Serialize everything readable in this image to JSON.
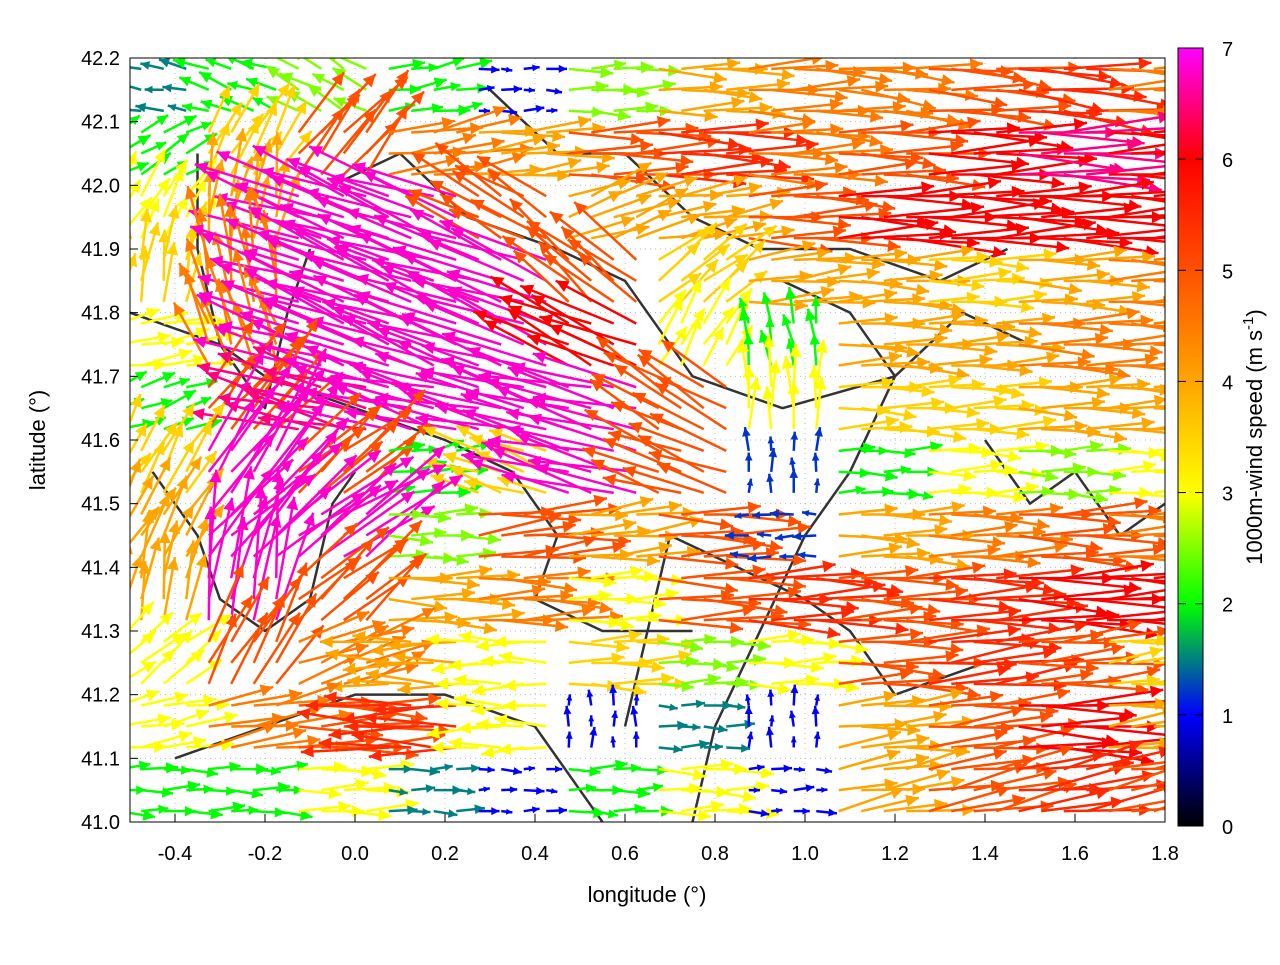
{
  "chart_data": {
    "type": "vector-field",
    "title": "",
    "xlabel": "longitude (°)",
    "ylabel": "latitude (°)",
    "xlim": [
      -0.5,
      1.8
    ],
    "ylim": [
      41.0,
      42.2
    ],
    "xticks": [
      "-0.4",
      "-0.2",
      "0.0",
      "0.2",
      "0.4",
      "0.6",
      "0.8",
      "1.0",
      "1.2",
      "1.4",
      "1.6",
      "1.8"
    ],
    "yticks": [
      "41.0",
      "41.1",
      "41.2",
      "41.3",
      "41.4",
      "41.5",
      "41.6",
      "41.7",
      "41.8",
      "41.9",
      "42.0",
      "42.1",
      "42.2"
    ],
    "grid": true,
    "colorbar": {
      "label": "1000m-wind speed (m s",
      "label_sup": "-1",
      "label_end": ")",
      "range": [
        0,
        7
      ],
      "ticks": [
        "0",
        "1",
        "2",
        "3",
        "4",
        "5",
        "6",
        "7"
      ],
      "colors": [
        "#000000",
        "#0000ff",
        "#00ff00",
        "#ffff00",
        "#ffa500",
        "#ff5000",
        "#ff0000",
        "#ff00ff"
      ]
    },
    "vector_grid": {
      "lon": [
        -0.45,
        -0.25,
        -0.05,
        0.15,
        0.35,
        0.55,
        0.75,
        0.95,
        1.15,
        1.35,
        1.55,
        1.75
      ],
      "lat": [
        42.15,
        42.05,
        41.95,
        41.85,
        41.75,
        41.65,
        41.55,
        41.45,
        41.35,
        41.25,
        41.15,
        41.05
      ],
      "note_units": "each cell = [speed m/s, direction deg toward, 0=east 90=north]",
      "rows": [
        [
          [
            1.5,
            170
          ],
          [
            2,
            160
          ],
          [
            2.5,
            150
          ],
          [
            2,
            10
          ],
          [
            1,
            0
          ],
          [
            2.5,
            0
          ],
          [
            4,
            0
          ],
          [
            4.5,
            0
          ],
          [
            4.5,
            355
          ],
          [
            5,
            355
          ],
          [
            5.5,
            355
          ],
          [
            4.5,
            0
          ]
        ],
        [
          [
            2,
            30
          ],
          [
            3.5,
            60
          ],
          [
            5,
            50
          ],
          [
            4.5,
            10
          ],
          [
            4,
            5
          ],
          [
            5,
            0
          ],
          [
            5.5,
            0
          ],
          [
            4.5,
            0
          ],
          [
            5,
            0
          ],
          [
            6,
            0
          ],
          [
            6.5,
            0
          ],
          [
            6,
            0
          ]
        ],
        [
          [
            3,
            60
          ],
          [
            4,
            80
          ],
          [
            6.8,
            160
          ],
          [
            6.8,
            160
          ],
          [
            5,
            150
          ],
          [
            4,
            20
          ],
          [
            4,
            10
          ],
          [
            5,
            0
          ],
          [
            6,
            0
          ],
          [
            6,
            0
          ],
          [
            6,
            0
          ],
          [
            6,
            0
          ]
        ],
        [
          [
            3.5,
            80
          ],
          [
            4.5,
            100
          ],
          [
            6.8,
            160
          ],
          [
            6.8,
            160
          ],
          [
            6.8,
            160
          ],
          [
            5,
            140
          ],
          [
            3.5,
            40
          ],
          [
            4,
            5
          ],
          [
            4,
            0
          ],
          [
            3.5,
            0
          ],
          [
            4,
            0
          ],
          [
            4.5,
            0
          ]
        ],
        [
          [
            3,
            10
          ],
          [
            4.5,
            110
          ],
          [
            6.8,
            160
          ],
          [
            6.8,
            160
          ],
          [
            6.8,
            160
          ],
          [
            6,
            155
          ],
          [
            3,
            60
          ],
          [
            2,
            100
          ],
          [
            4,
            0
          ],
          [
            4,
            0
          ],
          [
            4.5,
            0
          ],
          [
            4.5,
            0
          ]
        ],
        [
          [
            2,
            20
          ],
          [
            5,
            50
          ],
          [
            6.5,
            165
          ],
          [
            6.8,
            165
          ],
          [
            6.8,
            165
          ],
          [
            6.8,
            165
          ],
          [
            5,
            150
          ],
          [
            3,
            90
          ],
          [
            3.5,
            0
          ],
          [
            3.5,
            0
          ],
          [
            4,
            0
          ],
          [
            4,
            0
          ]
        ],
        [
          [
            3.5,
            60
          ],
          [
            6.8,
            55
          ],
          [
            5,
            40
          ],
          [
            2,
            10
          ],
          [
            3.5,
            160
          ],
          [
            6.8,
            165
          ],
          [
            5,
            160
          ],
          [
            1.2,
            90
          ],
          [
            2,
            0
          ],
          [
            3,
            0
          ],
          [
            2.5,
            0
          ],
          [
            3,
            0
          ]
        ],
        [
          [
            4,
            60
          ],
          [
            6.8,
            45
          ],
          [
            6.8,
            35
          ],
          [
            2.5,
            0
          ],
          [
            5,
            5
          ],
          [
            4,
            5
          ],
          [
            5,
            0
          ],
          [
            1.2,
            180
          ],
          [
            4,
            0
          ],
          [
            4.5,
            0
          ],
          [
            5,
            0
          ],
          [
            4.5,
            0
          ]
        ],
        [
          [
            4,
            80
          ],
          [
            6.8,
            80
          ],
          [
            5,
            40
          ],
          [
            4,
            0
          ],
          [
            4.5,
            0
          ],
          [
            3,
            0
          ],
          [
            5,
            0
          ],
          [
            5.5,
            0
          ],
          [
            5,
            0
          ],
          [
            5.5,
            0
          ],
          [
            6,
            0
          ],
          [
            6,
            0
          ]
        ],
        [
          [
            3,
            40
          ],
          [
            5,
            60
          ],
          [
            4.5,
            20
          ],
          [
            4,
            180
          ],
          [
            3,
            180
          ],
          [
            3.5,
            0
          ],
          [
            2.5,
            0
          ],
          [
            3,
            0
          ],
          [
            5,
            0
          ],
          [
            5.5,
            5
          ],
          [
            5,
            5
          ],
          [
            3.5,
            5
          ]
        ],
        [
          [
            3,
            10
          ],
          [
            4.5,
            10
          ],
          [
            5,
            0
          ],
          [
            5.5,
            180
          ],
          [
            3,
            180
          ],
          [
            1,
            90
          ],
          [
            1.5,
            0
          ],
          [
            1,
            90
          ],
          [
            4,
            5
          ],
          [
            5,
            5
          ],
          [
            6,
            0
          ],
          [
            4,
            5
          ]
        ],
        [
          [
            2,
            0
          ],
          [
            2,
            0
          ],
          [
            3,
            0
          ],
          [
            1.5,
            0
          ],
          [
            1,
            0
          ],
          [
            2,
            0
          ],
          [
            3,
            0
          ],
          [
            1,
            0
          ],
          [
            4,
            10
          ],
          [
            5,
            10
          ],
          [
            5.5,
            10
          ],
          [
            5,
            10
          ]
        ]
      ]
    },
    "contours": [
      [
        [
          -0.05,
          42.0
        ],
        [
          0.1,
          42.05
        ],
        [
          0.25,
          41.95
        ],
        [
          0.45,
          41.9
        ],
        [
          0.6,
          41.85
        ],
        [
          0.75,
          41.7
        ],
        [
          0.95,
          41.65
        ],
        [
          1.2,
          41.7
        ],
        [
          1.35,
          41.8
        ],
        [
          1.5,
          41.75
        ]
      ],
      [
        [
          0.3,
          42.15
        ],
        [
          0.45,
          42.05
        ],
        [
          0.6,
          42.05
        ],
        [
          0.75,
          41.95
        ],
        [
          0.9,
          41.9
        ],
        [
          1.1,
          41.9
        ],
        [
          1.3,
          41.85
        ],
        [
          1.45,
          41.9
        ]
      ],
      [
        [
          -0.5,
          41.8
        ],
        [
          -0.3,
          41.75
        ],
        [
          -0.2,
          41.7
        ],
        [
          0.0,
          41.65
        ],
        [
          0.2,
          41.6
        ],
        [
          0.35,
          41.55
        ],
        [
          0.45,
          41.45
        ],
        [
          0.4,
          41.35
        ],
        [
          0.55,
          41.3
        ],
        [
          0.75,
          41.3
        ]
      ],
      [
        [
          0.75,
          41.0
        ],
        [
          0.8,
          41.15
        ],
        [
          0.9,
          41.3
        ],
        [
          1.0,
          41.45
        ],
        [
          1.1,
          41.55
        ],
        [
          1.2,
          41.7
        ],
        [
          1.1,
          41.8
        ],
        [
          0.95,
          41.85
        ]
      ],
      [
        [
          -0.45,
          41.55
        ],
        [
          -0.35,
          41.45
        ],
        [
          -0.3,
          41.35
        ],
        [
          -0.2,
          41.3
        ],
        [
          -0.1,
          41.35
        ],
        [
          -0.05,
          41.5
        ],
        [
          0.0,
          41.55
        ]
      ],
      [
        [
          -0.35,
          42.05
        ],
        [
          -0.35,
          41.9
        ],
        [
          -0.3,
          41.75
        ],
        [
          -0.2,
          41.65
        ],
        [
          -0.15,
          41.8
        ],
        [
          -0.1,
          41.9
        ]
      ],
      [
        [
          0.6,
          41.15
        ],
        [
          0.65,
          41.3
        ],
        [
          0.7,
          41.45
        ],
        [
          0.85,
          41.4
        ],
        [
          1.0,
          41.35
        ],
        [
          1.1,
          41.3
        ],
        [
          1.2,
          41.2
        ],
        [
          1.4,
          41.25
        ]
      ],
      [
        [
          -0.4,
          41.1
        ],
        [
          -0.2,
          41.15
        ],
        [
          0.0,
          41.2
        ],
        [
          0.2,
          41.2
        ],
        [
          0.4,
          41.15
        ],
        [
          0.5,
          41.05
        ],
        [
          0.55,
          41.0
        ]
      ],
      [
        [
          1.4,
          41.6
        ],
        [
          1.5,
          41.5
        ],
        [
          1.6,
          41.55
        ],
        [
          1.7,
          41.45
        ],
        [
          1.8,
          41.5
        ]
      ]
    ]
  }
}
